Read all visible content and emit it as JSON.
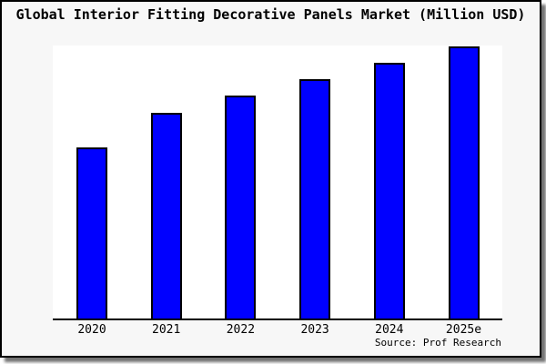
{
  "chart_data": {
    "type": "bar",
    "title": "Global Interior Fitting Decorative Panels Market (Million USD)",
    "categories": [
      "2020",
      "2021",
      "2022",
      "2023",
      "2024",
      "2025e"
    ],
    "values": [
      62.9,
      75.5,
      81.8,
      87.9,
      94.1,
      100
    ],
    "xlabel": "",
    "ylabel": "",
    "ylim": [
      0,
      100.3
    ],
    "grid": false,
    "legend": null,
    "bar_color": "#0000ff",
    "bar_edge_color": "#000000",
    "source": "Source: Prof Research"
  },
  "figure": {
    "background": "#f7f7f7",
    "plot_background": "#ffffff",
    "border_color": "#000000",
    "axis_color": "#000000",
    "text_color": "#000000"
  }
}
